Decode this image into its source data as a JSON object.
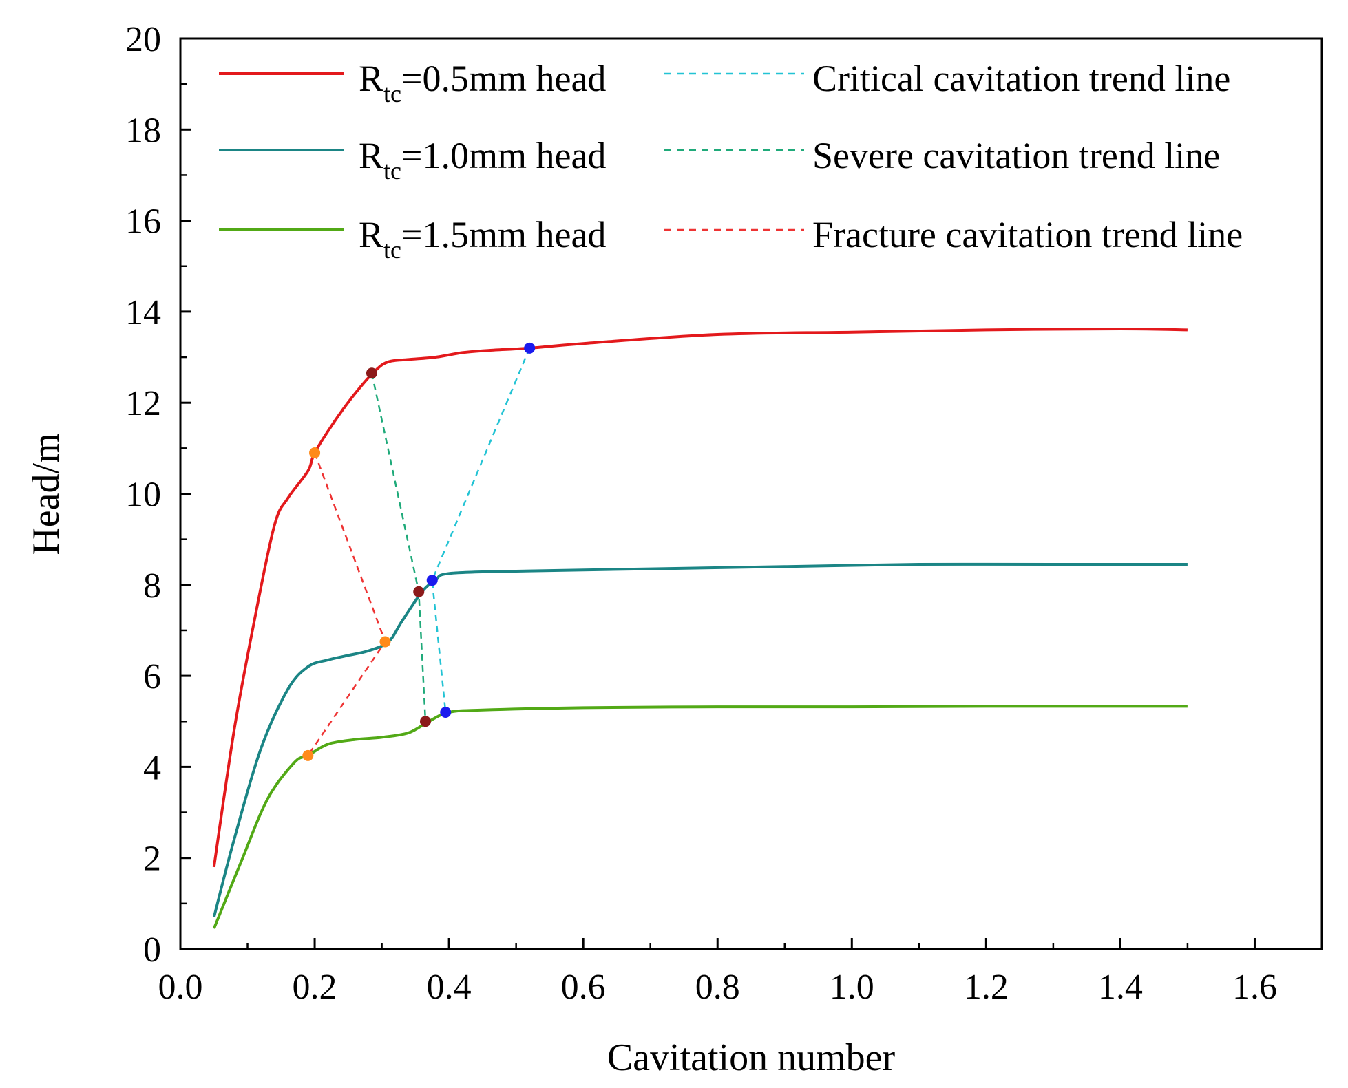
{
  "chart_data": {
    "type": "line",
    "title": "",
    "xlabel": "Cavitation number",
    "ylabel": "Head/m",
    "xlim": [
      0.0,
      1.7
    ],
    "ylim": [
      0,
      20
    ],
    "xticks": [
      "0.0",
      "0.2",
      "0.4",
      "0.6",
      "0.8",
      "1.0",
      "1.2",
      "1.4",
      "1.6"
    ],
    "yticks": [
      "0",
      "2",
      "4",
      "6",
      "8",
      "10",
      "12",
      "14",
      "16",
      "18",
      "20"
    ],
    "colors": {
      "rtc05": "#e3191c",
      "rtc10": "#1b8585",
      "rtc15": "#52a916",
      "critical": "#22c3d4",
      "severe": "#1faa7a",
      "fracture": "#ee3333",
      "marker_critical": "#1a1aee",
      "marker_severe": "#8b1a1a",
      "marker_fracture": "#ff8a1a"
    },
    "series": [
      {
        "name": "R_tc=0.5mm head",
        "legend_main": "R",
        "legend_sub": "tc",
        "legend_rest": "=0.5mm head",
        "x": [
          0.05,
          0.08,
          0.11,
          0.14,
          0.16,
          0.19,
          0.2,
          0.23,
          0.26,
          0.29,
          0.31,
          0.34,
          0.38,
          0.42,
          0.46,
          0.52,
          0.6,
          0.8,
          1.0,
          1.2,
          1.4,
          1.5
        ],
        "y": [
          1.8,
          4.8,
          7.2,
          9.3,
          9.9,
          10.5,
          10.9,
          11.6,
          12.2,
          12.7,
          12.9,
          12.95,
          13.0,
          13.1,
          13.15,
          13.2,
          13.3,
          13.5,
          13.55,
          13.6,
          13.62,
          13.6
        ]
      },
      {
        "name": "R_tc=1.0mm head",
        "legend_main": "R",
        "legend_sub": "tc",
        "legend_rest": "=1.0mm head",
        "x": [
          0.05,
          0.08,
          0.12,
          0.16,
          0.19,
          0.22,
          0.25,
          0.28,
          0.31,
          0.33,
          0.36,
          0.38,
          0.4,
          0.5,
          0.7,
          0.9,
          1.1,
          1.3,
          1.5
        ],
        "y": [
          0.7,
          2.4,
          4.4,
          5.7,
          6.2,
          6.35,
          6.45,
          6.55,
          6.75,
          7.2,
          7.85,
          8.1,
          8.25,
          8.3,
          8.35,
          8.4,
          8.45,
          8.45,
          8.45
        ]
      },
      {
        "name": "R_tc=1.5mm head",
        "legend_main": "R",
        "legend_sub": "tc",
        "legend_rest": "=1.5mm head",
        "x": [
          0.05,
          0.09,
          0.13,
          0.17,
          0.19,
          0.22,
          0.26,
          0.3,
          0.34,
          0.37,
          0.4,
          0.45,
          0.6,
          0.8,
          1.0,
          1.2,
          1.5
        ],
        "y": [
          0.45,
          1.9,
          3.3,
          4.1,
          4.25,
          4.5,
          4.6,
          4.65,
          4.75,
          5.0,
          5.2,
          5.25,
          5.3,
          5.32,
          5.32,
          5.33,
          5.33
        ]
      }
    ],
    "trend_lines": [
      {
        "name": "Critical cavitation trend line",
        "points": [
          [
            0.52,
            13.2
          ],
          [
            0.375,
            8.1
          ],
          [
            0.395,
            5.2
          ]
        ]
      },
      {
        "name": "Severe cavitation trend line",
        "points": [
          [
            0.285,
            12.65
          ],
          [
            0.355,
            7.85
          ],
          [
            0.365,
            5.0
          ]
        ]
      },
      {
        "name": "Fracture cavitation trend line",
        "points": [
          [
            0.2,
            10.9
          ],
          [
            0.305,
            6.75
          ],
          [
            0.19,
            4.25
          ]
        ]
      }
    ]
  }
}
